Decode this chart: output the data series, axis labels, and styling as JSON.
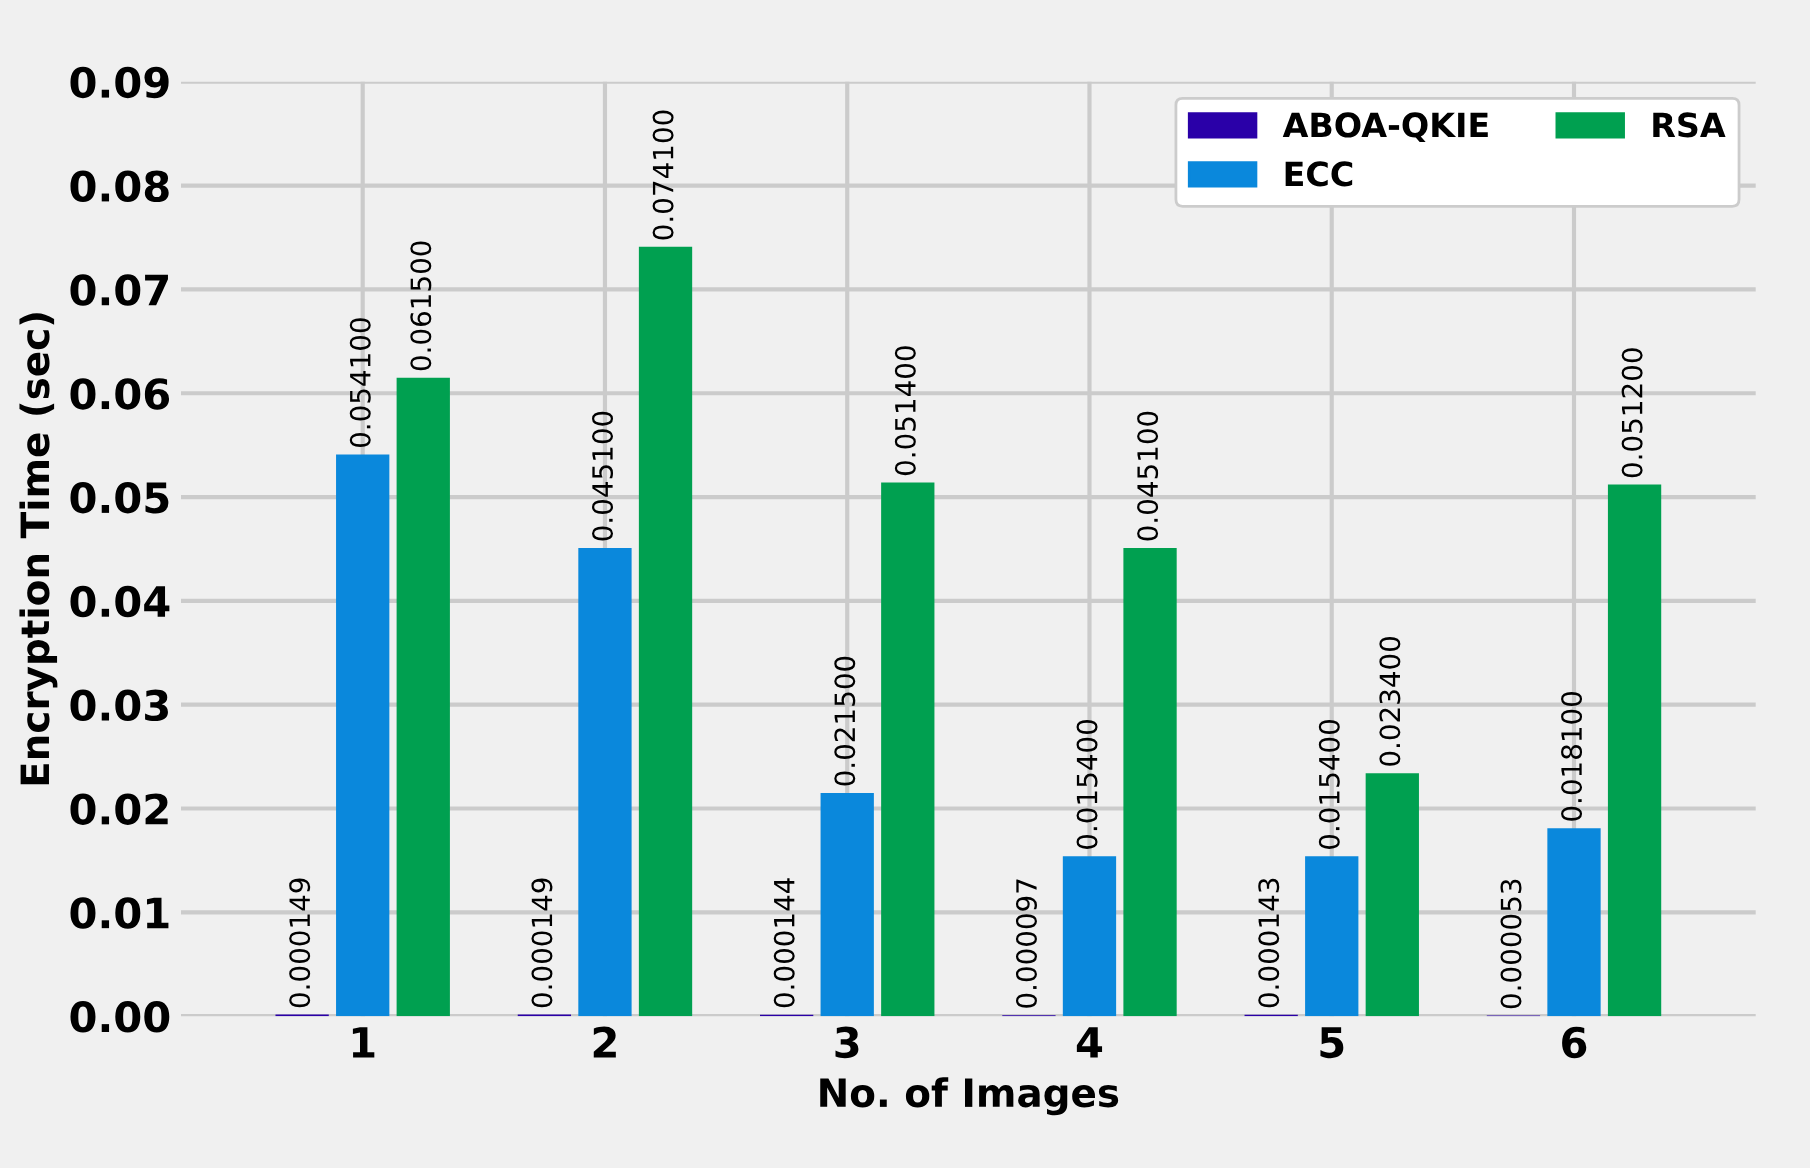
{
  "chart_data": {
    "type": "bar",
    "xlabel": "No. of Images",
    "ylabel": "Encryption Time (sec)",
    "categories": [
      "1",
      "2",
      "3",
      "4",
      "5",
      "6"
    ],
    "series": [
      {
        "name": "ABOA-QKIE",
        "color": "#2a00a8",
        "values": [
          0.000149,
          0.000149,
          0.000144,
          9.7e-05,
          0.000143,
          5.3e-05
        ],
        "value_labels": [
          "0.000149",
          "0.000149",
          "0.000144",
          "0.000097",
          "0.000143",
          "0.000053"
        ]
      },
      {
        "name": "ECC",
        "color": "#0a88dc",
        "values": [
          0.0541,
          0.0451,
          0.0215,
          0.0154,
          0.0154,
          0.0181
        ],
        "value_labels": [
          "0.054100",
          "0.045100",
          "0.021500",
          "0.015400",
          "0.015400",
          "0.018100"
        ]
      },
      {
        "name": "RSA",
        "color": "#00a050",
        "values": [
          0.0615,
          0.0741,
          0.0514,
          0.0451,
          0.0234,
          0.0512
        ],
        "value_labels": [
          "0.061500",
          "0.074100",
          "0.051400",
          "0.045100",
          "0.023400",
          "0.051200"
        ]
      }
    ],
    "ylim": [
      0,
      0.09
    ],
    "yticks": [
      {
        "value": 0,
        "label": "0.00"
      },
      {
        "value": 0.01,
        "label": "0.01"
      },
      {
        "value": 0.02,
        "label": "0.02"
      },
      {
        "value": 0.03,
        "label": "0.03"
      },
      {
        "value": 0.04,
        "label": "0.04"
      },
      {
        "value": 0.05,
        "label": "0.05"
      },
      {
        "value": 0.06,
        "label": "0.06"
      },
      {
        "value": 0.07,
        "label": "0.07"
      },
      {
        "value": 0.08,
        "label": "0.08"
      },
      {
        "value": 0.09,
        "label": "0.09"
      }
    ],
    "grid": true,
    "legend": "top right"
  }
}
